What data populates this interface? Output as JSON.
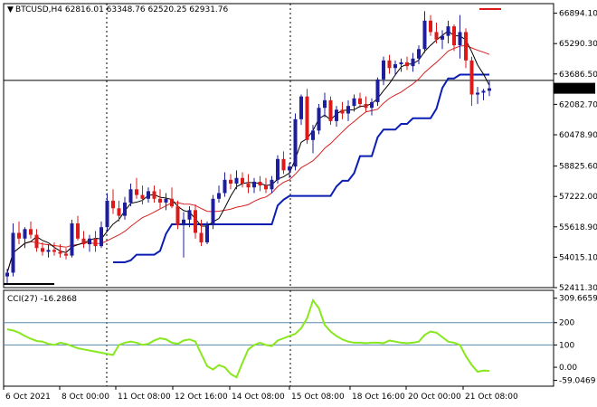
{
  "header": {
    "marker": "▼",
    "symbol_info": "BTCUSD,H4  62816.01 63348.76 62520.25 62931.76"
  },
  "indicator": {
    "label": "CCI(27) -16.2868"
  },
  "colors": {
    "background": "#ffffff",
    "bull_candle": "#1e1e9c",
    "bear_candle": "#dd1a1a",
    "ma_fast": "#000000",
    "ma_slow": "#d62020",
    "stop_line": "#0a1eb4",
    "cci_line": "#88e81e",
    "level_line": "#5a8aaa",
    "price_tag_bg": "#000000",
    "price_tag_text": "#ffffff"
  },
  "chart_data": [
    {
      "type": "candlestick",
      "title": "BTCUSD,H4",
      "current_price": 62931.76,
      "horizontal_line": 63350,
      "ylim": [
        52411.3,
        67400
      ],
      "y_ticks": [
        "66894.10",
        "65290.30",
        "63686.50",
        "62082.70",
        "60478.90",
        "58825.60",
        "57222.00",
        "55618.90",
        "54015.10",
        "52411.30"
      ],
      "x_ticks": [
        "6 Oct 2021",
        "8 Oct 00:00",
        "11 Oct 08:00",
        "12 Oct 16:00",
        "14 Oct 08:00",
        "15 Oct 08:00",
        "18 Oct 16:00",
        "20 Oct 00:00",
        "21 Oct 08:00"
      ],
      "candles": [
        [
          53000,
          53400,
          52600,
          53200
        ],
        [
          53200,
          55800,
          53000,
          55300
        ],
        [
          55300,
          55900,
          54700,
          55000
        ],
        [
          55000,
          55600,
          54500,
          55500
        ],
        [
          55500,
          55900,
          55000,
          55200
        ],
        [
          55200,
          55500,
          54300,
          54500
        ],
        [
          54500,
          54800,
          54100,
          54300
        ],
        [
          54300,
          54700,
          54000,
          54400
        ],
        [
          54400,
          54800,
          54100,
          54300
        ],
        [
          54300,
          54700,
          54000,
          54200
        ],
        [
          54200,
          54500,
          53900,
          54100
        ],
        [
          54100,
          56000,
          54000,
          55800
        ],
        [
          55800,
          56200,
          54900,
          55000
        ],
        [
          55000,
          55400,
          54500,
          54700
        ],
        [
          54700,
          55200,
          54300,
          55000
        ],
        [
          55000,
          55400,
          54300,
          54600
        ],
        [
          54600,
          55900,
          54500,
          55600
        ],
        [
          55600,
          57400,
          55400,
          57000
        ],
        [
          57000,
          57600,
          56300,
          56600
        ],
        [
          56600,
          57000,
          55900,
          56200
        ],
        [
          56200,
          57200,
          56000,
          56900
        ],
        [
          56900,
          57900,
          56700,
          57600
        ],
        [
          57600,
          58200,
          57100,
          57300
        ],
        [
          57300,
          57800,
          56800,
          57100
        ],
        [
          57100,
          57700,
          56900,
          57500
        ],
        [
          57500,
          57800,
          56900,
          57100
        ],
        [
          57100,
          57600,
          56600,
          56900
        ],
        [
          56900,
          57400,
          56500,
          57100
        ],
        [
          57100,
          57700,
          56600,
          56700
        ],
        [
          56700,
          57000,
          55500,
          55700
        ],
        [
          55700,
          56400,
          54000,
          56000
        ],
        [
          56000,
          56700,
          55600,
          56500
        ],
        [
          56500,
          56800,
          55000,
          55300
        ],
        [
          55300,
          56000,
          54600,
          54800
        ],
        [
          54800,
          55900,
          54700,
          55700
        ],
        [
          55700,
          57300,
          55500,
          57100
        ],
        [
          57100,
          57800,
          56900,
          57400
        ],
        [
          57400,
          58500,
          57200,
          58100
        ],
        [
          58100,
          58400,
          57600,
          57900
        ],
        [
          57900,
          58600,
          57600,
          58200
        ],
        [
          58200,
          58500,
          57700,
          57900
        ],
        [
          57900,
          58400,
          57400,
          57700
        ],
        [
          57700,
          58200,
          57400,
          58000
        ],
        [
          58000,
          58300,
          57500,
          57800
        ],
        [
          57800,
          58200,
          57400,
          57600
        ],
        [
          57600,
          58300,
          57400,
          58100
        ],
        [
          58100,
          59400,
          57900,
          59200
        ],
        [
          59200,
          59600,
          58400,
          58600
        ],
        [
          58600,
          59000,
          58200,
          58800
        ],
        [
          58800,
          61600,
          58600,
          61300
        ],
        [
          61300,
          62600,
          61000,
          62500
        ],
        [
          62500,
          62900,
          60000,
          60200
        ],
        [
          60200,
          61000,
          59500,
          60700
        ],
        [
          60700,
          62100,
          60500,
          61900
        ],
        [
          61900,
          62700,
          61400,
          62300
        ],
        [
          62300,
          62500,
          61000,
          61200
        ],
        [
          61200,
          62000,
          60900,
          61800
        ],
        [
          61800,
          62200,
          61300,
          61600
        ],
        [
          61600,
          62300,
          61200,
          62000
        ],
        [
          62000,
          62600,
          61700,
          62400
        ],
        [
          62400,
          62700,
          61900,
          62100
        ],
        [
          62100,
          62500,
          61700,
          61900
        ],
        [
          61900,
          62400,
          61500,
          62200
        ],
        [
          62200,
          63500,
          62000,
          63400
        ],
        [
          63400,
          64600,
          63100,
          64400
        ],
        [
          64400,
          64700,
          63700,
          64000
        ],
        [
          64000,
          64400,
          63600,
          64200
        ],
        [
          64200,
          64500,
          63800,
          64300
        ],
        [
          64300,
          64600,
          63900,
          64100
        ],
        [
          64100,
          64800,
          63800,
          64500
        ],
        [
          64500,
          65200,
          64200,
          65000
        ],
        [
          65000,
          67000,
          64800,
          66500
        ],
        [
          66500,
          66800,
          65700,
          65900
        ],
        [
          65900,
          66400,
          65300,
          65500
        ],
        [
          65500,
          66000,
          65000,
          65700
        ],
        [
          65700,
          66500,
          65300,
          66200
        ],
        [
          66200,
          66300,
          64900,
          65200
        ],
        [
          65200,
          66800,
          64500,
          65900
        ],
        [
          65900,
          66100,
          64000,
          64400
        ],
        [
          64400,
          64600,
          62000,
          62600
        ],
        [
          62600,
          63000,
          62100,
          62700
        ],
        [
          62700,
          62900,
          62300,
          62800
        ],
        [
          62800,
          63350,
          62520,
          62932
        ]
      ]
    },
    {
      "type": "line",
      "title": "CCI(27) -16.2868",
      "ylim": [
        -85,
        345
      ],
      "y_ticks": [
        "309.6659",
        "200",
        "100",
        "0.00",
        "-59.0469"
      ],
      "levels": [
        200,
        100
      ],
      "values": [
        170,
        165,
        155,
        140,
        128,
        118,
        115,
        105,
        100,
        110,
        105,
        95,
        85,
        80,
        75,
        70,
        65,
        60,
        55,
        100,
        110,
        115,
        110,
        100,
        105,
        120,
        130,
        125,
        110,
        105,
        120,
        125,
        115,
        60,
        5,
        -10,
        10,
        0,
        -30,
        -45,
        20,
        80,
        100,
        110,
        100,
        95,
        120,
        130,
        140,
        150,
        175,
        220,
        300,
        265,
        190,
        160,
        140,
        125,
        115,
        110,
        110,
        108,
        110,
        110,
        108,
        120,
        115,
        110,
        108,
        110,
        115,
        145,
        160,
        155,
        135,
        115,
        110,
        100,
        50,
        10,
        -20,
        -15,
        -16.29
      ]
    }
  ]
}
